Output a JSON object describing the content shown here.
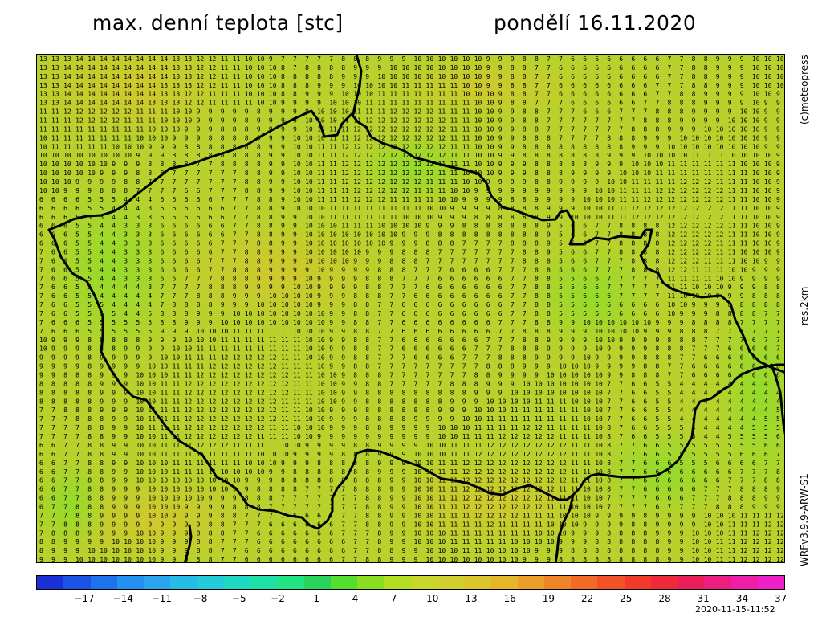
{
  "header": {
    "title": "max. denní teplota [stc]",
    "date": "pondělí 16.11.2020"
  },
  "side_labels": {
    "copyright": "(c)meteopress",
    "resolution": "res.2km",
    "model": "WRFv3.9.9-ARW-S1"
  },
  "colorbar": {
    "colors": [
      "#1b2fd6",
      "#1a52e6",
      "#1e72ee",
      "#2390f2",
      "#2aa6f0",
      "#27bce8",
      "#22ccd8",
      "#1fd8c2",
      "#1ee0a6",
      "#20e484",
      "#2ad45a",
      "#55e030",
      "#8ae020",
      "#b4de22",
      "#c8d82a",
      "#d2cf30",
      "#dcc42c",
      "#e6b62a",
      "#ec9e2a",
      "#f08428",
      "#f26a26",
      "#f25226",
      "#f03a2a",
      "#ee2a3a",
      "#ec1e5a",
      "#ec1e80",
      "#ee1ea8",
      "#f020c8"
    ],
    "tick_labels": [
      "−17",
      "−14",
      "−11",
      "−8",
      "−5",
      "−2",
      "1",
      "4",
      "7",
      "10",
      "13",
      "16",
      "19",
      "22",
      "25",
      "28",
      "31",
      "34",
      "37"
    ]
  },
  "timestamp": "2020-11-15-11:52",
  "map": {
    "fill_color": "#b7d22b",
    "border_color": "#000000"
  }
}
